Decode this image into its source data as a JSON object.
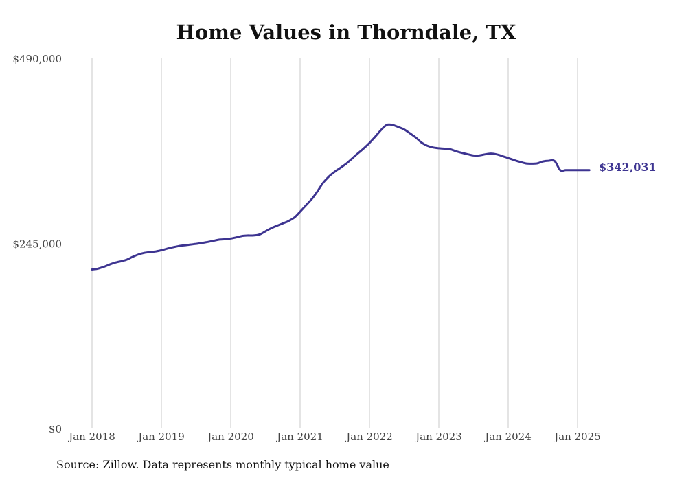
{
  "chart_data": {
    "type": "line",
    "title": "Home Values in Thorndale, TX",
    "xlabel": "",
    "ylabel": "",
    "ylim": [
      0,
      490000
    ],
    "y_ticks": [
      {
        "value": 0,
        "label": "$0"
      },
      {
        "value": 245000,
        "label": "$245,000"
      },
      {
        "value": 490000,
        "label": "$490,000"
      }
    ],
    "x_ticks": [
      {
        "value": 2018.0,
        "label": "Jan 2018"
      },
      {
        "value": 2019.0,
        "label": "Jan 2019"
      },
      {
        "value": 2020.0,
        "label": "Jan 2020"
      },
      {
        "value": 2021.0,
        "label": "Jan 2021"
      },
      {
        "value": 2022.0,
        "label": "Jan 2022"
      },
      {
        "value": 2023.0,
        "label": "Jan 2023"
      },
      {
        "value": 2024.0,
        "label": "Jan 2024"
      },
      {
        "value": 2025.0,
        "label": "Jan 2025"
      }
    ],
    "grid": "vertical",
    "legend": "none",
    "line_color": "#3d3491",
    "series": [
      {
        "x": [
          2018.0,
          2018.08,
          2018.17,
          2018.25,
          2018.33,
          2018.42,
          2018.5,
          2018.58,
          2018.67,
          2018.75,
          2018.83,
          2018.92,
          2019.0,
          2019.08,
          2019.17,
          2019.25,
          2019.33,
          2019.42,
          2019.5,
          2019.58,
          2019.67,
          2019.75,
          2019.83,
          2019.92,
          2020.0,
          2020.08,
          2020.17,
          2020.25,
          2020.33,
          2020.42,
          2020.5,
          2020.58,
          2020.67,
          2020.75,
          2020.83,
          2020.92,
          2021.0,
          2021.08,
          2021.17,
          2021.25,
          2021.33,
          2021.42,
          2021.5,
          2021.58,
          2021.67,
          2021.75,
          2021.83,
          2021.92,
          2022.0,
          2022.08,
          2022.17,
          2022.25,
          2022.33,
          2022.42,
          2022.5,
          2022.58,
          2022.67,
          2022.75,
          2022.83,
          2022.92,
          2023.0,
          2023.08,
          2023.17,
          2023.25,
          2023.33,
          2023.42,
          2023.5,
          2023.58,
          2023.67,
          2023.75,
          2023.83,
          2023.92,
          2024.0,
          2024.08,
          2024.17,
          2024.25,
          2024.33,
          2024.42,
          2024.5,
          2024.58,
          2024.67,
          2024.75,
          2024.83,
          2024.92,
          2025.0,
          2025.08,
          2025.17,
          2025.25,
          2025.33
        ],
        "y": [
          210500,
          211500,
          214000,
          217000,
          219500,
          221500,
          223500,
          227000,
          230500,
          232500,
          233500,
          234500,
          236000,
          238000,
          240000,
          241500,
          242500,
          243500,
          244500,
          245500,
          247000,
          248500,
          250000,
          250500,
          251500,
          253000,
          255000,
          255500,
          255500,
          257000,
          261000,
          265000,
          268500,
          271500,
          274500,
          279500,
          287000,
          295000,
          304000,
          314000,
          325000,
          334000,
          340000,
          345000,
          351000,
          357500,
          364000,
          371000,
          378000,
          386000,
          395500,
          402000,
          402000,
          399000,
          396000,
          391000,
          385000,
          378500,
          374500,
          372000,
          371000,
          370500,
          369500,
          367000,
          365000,
          363000,
          361500,
          361500,
          363000,
          364000,
          363000,
          360500,
          358000,
          355500,
          353000,
          351000,
          350500,
          351000,
          353500,
          354500,
          354000,
          342031,
          342031,
          342031,
          342031,
          342031,
          342031,
          342031,
          342031
        ]
      }
    ],
    "end_label": "$342,031"
  },
  "footer": {
    "source": "Source: Zillow. Data represents monthly typical home value"
  }
}
